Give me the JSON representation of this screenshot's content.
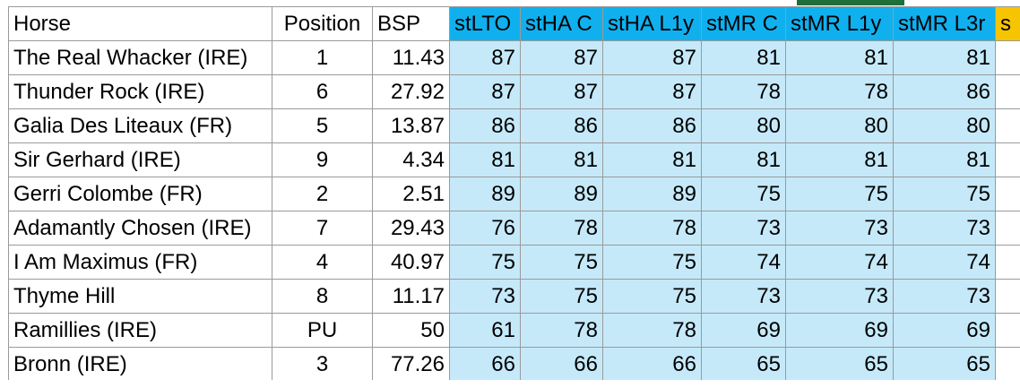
{
  "sheet": {
    "headers": {
      "horse": "Horse",
      "position": "Position",
      "bsp": "BSP",
      "stlto": "stLTO",
      "stha_c": "stHA C",
      "stha_l1y": "stHA L1y",
      "stmr_c": "stMR C",
      "stmr_l1y": "stMR L1y",
      "stmr_l3r": "stMR L3r",
      "next": "s"
    },
    "rows": [
      {
        "horse": "The Real Whacker (IRE)",
        "position": "1",
        "bsp": "11.43",
        "stlto": "87",
        "stha_c": "87",
        "stha_l1y": "87",
        "stmr_c": "81",
        "stmr_l1y": "81",
        "stmr_l3r": "81"
      },
      {
        "horse": "Thunder Rock (IRE)",
        "position": "6",
        "bsp": "27.92",
        "stlto": "87",
        "stha_c": "87",
        "stha_l1y": "87",
        "stmr_c": "78",
        "stmr_l1y": "78",
        "stmr_l3r": "86"
      },
      {
        "horse": "Galia Des Liteaux (FR)",
        "position": "5",
        "bsp": "13.87",
        "stlto": "86",
        "stha_c": "86",
        "stha_l1y": "86",
        "stmr_c": "80",
        "stmr_l1y": "80",
        "stmr_l3r": "80"
      },
      {
        "horse": "Sir Gerhard (IRE)",
        "position": "9",
        "bsp": "4.34",
        "stlto": "81",
        "stha_c": "81",
        "stha_l1y": "81",
        "stmr_c": "81",
        "stmr_l1y": "81",
        "stmr_l3r": "81"
      },
      {
        "horse": "Gerri Colombe (FR)",
        "position": "2",
        "bsp": "2.51",
        "stlto": "89",
        "stha_c": "89",
        "stha_l1y": "89",
        "stmr_c": "75",
        "stmr_l1y": "75",
        "stmr_l3r": "75"
      },
      {
        "horse": "Adamantly Chosen (IRE)",
        "position": "7",
        "bsp": "29.43",
        "stlto": "76",
        "stha_c": "78",
        "stha_l1y": "78",
        "stmr_c": "73",
        "stmr_l1y": "73",
        "stmr_l3r": "73"
      },
      {
        "horse": "I Am Maximus (FR)",
        "position": "4",
        "bsp": "40.97",
        "stlto": "75",
        "stha_c": "75",
        "stha_l1y": "75",
        "stmr_c": "74",
        "stmr_l1y": "74",
        "stmr_l3r": "74"
      },
      {
        "horse": "Thyme Hill",
        "position": "8",
        "bsp": "11.17",
        "stlto": "73",
        "stha_c": "75",
        "stha_l1y": "75",
        "stmr_c": "73",
        "stmr_l1y": "73",
        "stmr_l3r": "73"
      },
      {
        "horse": "Ramillies (IRE)",
        "position": "PU",
        "bsp": "50",
        "stlto": "61",
        "stha_c": "78",
        "stha_l1y": "78",
        "stmr_c": "69",
        "stmr_l1y": "69",
        "stmr_l3r": "69"
      },
      {
        "horse": "Bronn (IRE)",
        "position": "3",
        "bsp": "77.26",
        "stlto": "66",
        "stha_c": "66",
        "stha_l1y": "66",
        "stmr_c": "65",
        "stmr_l1y": "65",
        "stmr_l3r": "65"
      }
    ]
  },
  "colors": {
    "header_blue": "#10b0ef",
    "cell_blue": "#c5e9f9",
    "header_gold": "#f6c400",
    "grid": "#9a9a9a"
  }
}
